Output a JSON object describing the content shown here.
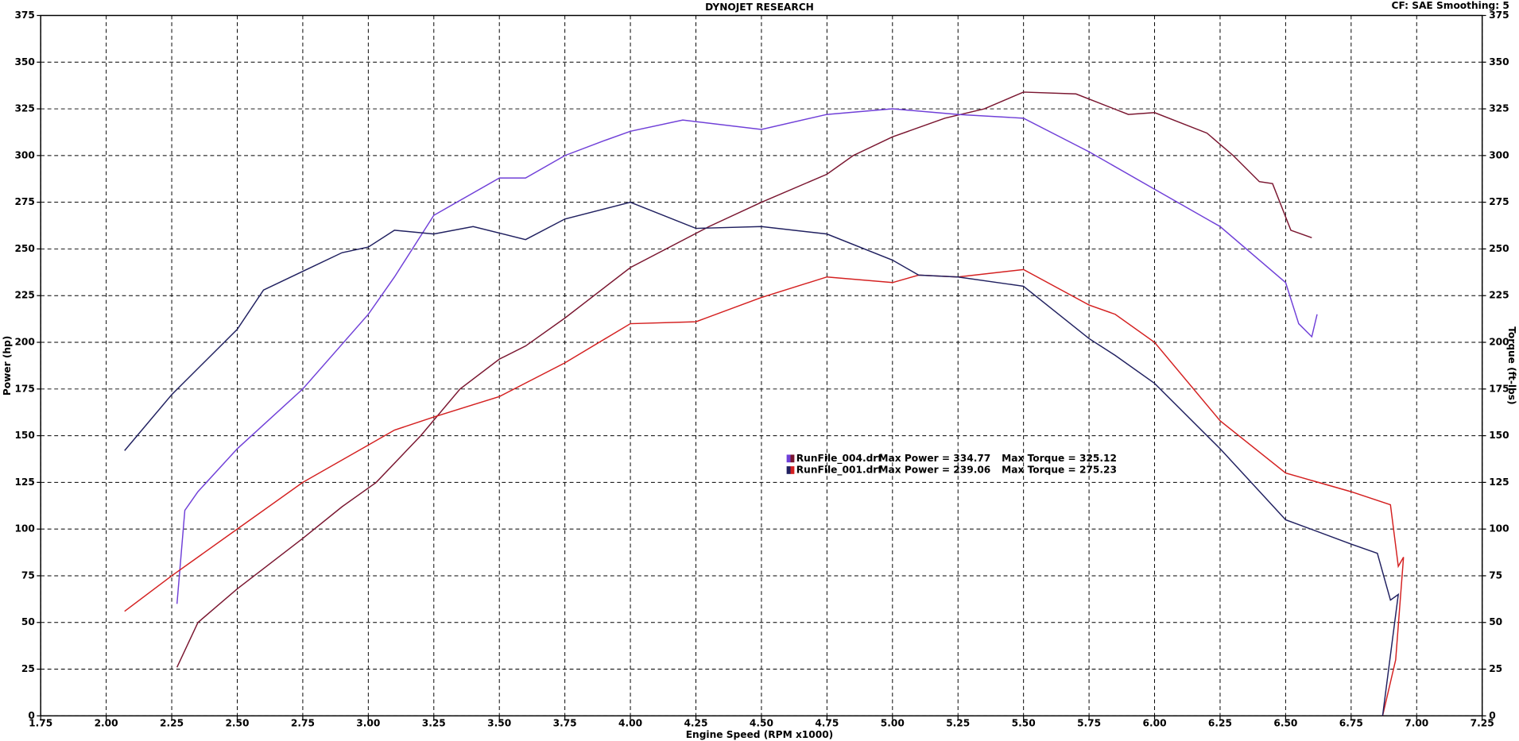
{
  "chart_data": {
    "type": "line",
    "title": "DYNOJET RESEARCH",
    "subtitle": "CF: SAE  Smoothing: 5",
    "x_label": "Engine Speed (RPM x1000)",
    "y_label": "Power (hp)",
    "y2_label": "Torque (ft-lbs)",
    "xlim": [
      1.75,
      7.25
    ],
    "xticks": [
      {
        "value": 1.75,
        "label": "1.75"
      },
      {
        "value": 2,
        "label": "2.00"
      },
      {
        "value": 2.25,
        "label": "2.25"
      },
      {
        "value": 2.5,
        "label": "2.50"
      },
      {
        "value": 2.75,
        "label": "2.75"
      },
      {
        "value": 3,
        "label": "3.00"
      },
      {
        "value": 3.25,
        "label": "3.25"
      },
      {
        "value": 3.5,
        "label": "3.50"
      },
      {
        "value": 3.75,
        "label": "3.75"
      },
      {
        "value": 4,
        "label": "4.00"
      },
      {
        "value": 4.25,
        "label": "4.25"
      },
      {
        "value": 4.5,
        "label": "4.50"
      },
      {
        "value": 4.75,
        "label": "4.75"
      },
      {
        "value": 5,
        "label": "5.00"
      },
      {
        "value": 5.25,
        "label": "5.25"
      },
      {
        "value": 5.5,
        "label": "5.50"
      },
      {
        "value": 5.75,
        "label": "5.75"
      },
      {
        "value": 6,
        "label": "6.00"
      },
      {
        "value": 6.25,
        "label": "6.25"
      },
      {
        "value": 6.5,
        "label": "6.50"
      },
      {
        "value": 6.75,
        "label": "6.75"
      },
      {
        "value": 7,
        "label": "7.00"
      },
      {
        "value": 7.25,
        "label": "7.25"
      }
    ],
    "ylim": [
      0,
      375
    ],
    "yticks": [
      0,
      25,
      50,
      75,
      100,
      125,
      150,
      175,
      200,
      225,
      250,
      275,
      300,
      325,
      350,
      375
    ],
    "y2lim": [
      0,
      375
    ],
    "y2ticks": [
      0,
      25,
      50,
      75,
      100,
      125,
      150,
      175,
      200,
      225,
      250,
      275,
      300,
      325,
      350,
      375
    ],
    "grid": true,
    "series": [
      {
        "name": "RunFile_004.drf",
        "color": "#7a1630",
        "x": [
          2.27,
          2.35,
          2.5,
          2.75,
          2.9,
          3.03,
          3.2,
          3.35,
          3.5,
          3.6,
          3.75,
          4.0,
          4.3,
          4.5,
          4.75,
          4.85,
          5.0,
          5.2,
          5.35,
          5.5,
          5.7,
          5.9,
          6.0,
          6.2,
          6.3,
          6.4,
          6.45,
          6.52,
          6.6
        ],
        "values": [
          26,
          50,
          68,
          95,
          112,
          125,
          150,
          175,
          191,
          198,
          213,
          240,
          262,
          275,
          290,
          300,
          310,
          320,
          325,
          334,
          333,
          322,
          323,
          312,
          300,
          286,
          285,
          260,
          256
        ]
      },
      {
        "name": "RunFile_004.drf",
        "color": "#7040d8",
        "axis": "y2",
        "x": [
          2.27,
          2.3,
          2.35,
          2.5,
          2.75,
          3.0,
          3.1,
          3.25,
          3.5,
          3.6,
          3.75,
          3.9,
          4.0,
          4.2,
          4.5,
          4.75,
          5.0,
          5.25,
          5.5,
          5.75,
          6.0,
          6.25,
          6.5,
          6.55,
          6.6,
          6.62
        ],
        "values": [
          60,
          110,
          120,
          143,
          175,
          215,
          235,
          268,
          288,
          288,
          300,
          308,
          313,
          319,
          314,
          322,
          325,
          322,
          320,
          302,
          282,
          262,
          232,
          210,
          203,
          215
        ]
      },
      {
        "name": "RunFile_001.drf",
        "color": "#d42020",
        "x": [
          2.07,
          2.25,
          2.5,
          2.75,
          3.0,
          3.1,
          3.25,
          3.5,
          3.75,
          4.0,
          4.25,
          4.5,
          4.75,
          5.0,
          5.1,
          5.25,
          5.5,
          5.75,
          5.85,
          6.0,
          6.25,
          6.5,
          6.75,
          6.9,
          6.93,
          6.95,
          6.92,
          6.87
        ],
        "values": [
          56,
          75,
          100,
          125,
          145,
          153,
          160,
          171,
          189,
          210,
          211,
          224,
          235,
          232,
          236,
          235,
          239,
          220,
          215,
          200,
          158,
          130,
          120,
          113,
          80,
          85,
          30,
          0
        ]
      },
      {
        "name": "RunFile_001.drf",
        "color": "#202060",
        "axis": "y2",
        "x": [
          2.07,
          2.25,
          2.5,
          2.6,
          2.75,
          2.9,
          3.0,
          3.1,
          3.25,
          3.4,
          3.6,
          3.75,
          4.0,
          4.25,
          4.5,
          4.75,
          5.0,
          5.1,
          5.25,
          5.5,
          5.75,
          5.85,
          6.0,
          6.25,
          6.5,
          6.75,
          6.85,
          6.9,
          6.93,
          6.87
        ],
        "values": [
          142,
          172,
          207,
          228,
          238,
          248,
          251,
          260,
          258,
          262,
          255,
          266,
          275,
          261,
          262,
          258,
          244,
          236,
          235,
          230,
          202,
          193,
          178,
          143,
          105,
          92,
          87,
          62,
          65,
          0
        ]
      }
    ],
    "annotations": [
      "Max Power = 334.77",
      "Max Torque = 325.12",
      "Max Power = 239.06",
      "Max Torque = 275.23"
    ]
  }
}
